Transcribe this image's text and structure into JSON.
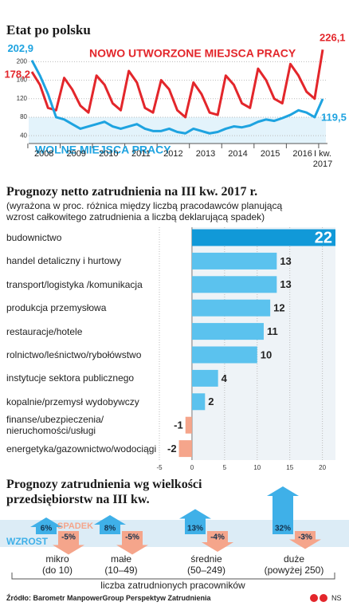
{
  "chart_data": [
    {
      "type": "line",
      "title": "Etat po polsku",
      "year_labels": [
        "2008",
        "2009",
        "2010",
        "2011",
        "2012",
        "2013",
        "2014",
        "2015",
        "2016",
        "I kw.\n2017"
      ],
      "ylim": [
        23,
        230
      ],
      "yticks": [
        40,
        80,
        120,
        160,
        200
      ],
      "grid": true,
      "series": [
        {
          "name": "NOWO UTWORZONE MIEJSCA PRACY",
          "color": "#e3262b",
          "values": [
            178.2,
            150,
            100,
            95,
            165,
            140,
            105,
            90,
            170,
            150,
            110,
            95,
            180,
            155,
            100,
            90,
            160,
            140,
            95,
            80,
            155,
            130,
            90,
            85,
            170,
            150,
            110,
            100,
            185,
            160,
            120,
            110,
            195,
            170,
            135,
            120,
            226.1
          ],
          "value_labels": [
            "178,2",
            null,
            null,
            null,
            null,
            null,
            null,
            null,
            null,
            null,
            null,
            null,
            null,
            null,
            null,
            null,
            null,
            null,
            null,
            null,
            null,
            null,
            null,
            null,
            null,
            null,
            null,
            null,
            null,
            null,
            null,
            null,
            null,
            null,
            null,
            null,
            "226,1"
          ]
        },
        {
          "name": "WOLNE MIEJSCA PRACY",
          "color": "#1ea3e0",
          "values": [
            202.9,
            170,
            130,
            80,
            75,
            65,
            55,
            60,
            65,
            70,
            60,
            55,
            60,
            65,
            55,
            50,
            50,
            55,
            48,
            45,
            55,
            50,
            45,
            48,
            55,
            60,
            58,
            62,
            70,
            75,
            72,
            78,
            85,
            95,
            90,
            80,
            119.5
          ],
          "value_labels": [
            "202,9",
            null,
            null,
            null,
            null,
            null,
            null,
            null,
            null,
            null,
            null,
            null,
            null,
            null,
            null,
            null,
            null,
            null,
            null,
            null,
            null,
            null,
            null,
            null,
            null,
            null,
            null,
            null,
            null,
            null,
            null,
            null,
            null,
            null,
            null,
            null,
            "119,5"
          ]
        }
      ]
    },
    {
      "type": "hbar",
      "title": "Prognozy netto zatrudnienia na III kw. 2017 r.",
      "subtitle": "(wyrażona w proc. różnica między liczbą pracodawców planującą\nwzrost całkowitego zatrudnienia a liczbą deklarującą spadek)",
      "categories": [
        "budownictwo",
        "handel detaliczny i hurtowy",
        "transport/logistyka /komunikacja",
        "produkcja przemysłowa",
        "restauracje/hotele",
        "rolnictwo/leśnictwo/rybołówstwo",
        "instytucje sektora publicznego",
        "kopalnie/przemysł wydobywczy",
        "finanse/ubezpieczenia/\nnieruchomości/usługi",
        "energetyka/gazownictwo/wodociągi"
      ],
      "values": [
        22,
        13,
        13,
        12,
        11,
        10,
        4,
        2,
        -1,
        -2
      ],
      "colors": [
        "#1199d8",
        "#5bc2ee",
        "#5bc2ee",
        "#5bc2ee",
        "#5bc2ee",
        "#5bc2ee",
        "#5bc2ee",
        "#5bc2ee",
        "#f5a58b",
        "#f5a58b"
      ],
      "xlim": [
        -5,
        22
      ],
      "xticks": [
        -5,
        0,
        5,
        10,
        15,
        20
      ],
      "grid": true
    },
    {
      "type": "arrows",
      "title": "Prognozy zatrudnienia wg wielkości\nprzedsiębiorstw na III kw.",
      "categories": [
        "mikro\n(do 10)",
        "małe\n(10–49)",
        "średnie\n(50–249)",
        "duże\n(powyżej 250)"
      ],
      "axis_label": "liczba zatrudnionych pracowników",
      "series": [
        {
          "name": "WZROST",
          "color": "#3fb0e8",
          "values": [
            6,
            8,
            13,
            32
          ],
          "value_labels": [
            "6%",
            "8%",
            "13%",
            "32%"
          ]
        },
        {
          "name": "SPADEK",
          "color": "#f5a58b",
          "values": [
            -5,
            -5,
            -4,
            -3
          ],
          "value_labels": [
            "-5%",
            "-5%",
            "-4%",
            "-3%"
          ]
        }
      ]
    }
  ],
  "source": "Źródło: Barometr ManpowerGroup Perspektyw Zatrudnienia",
  "credit": "NS"
}
